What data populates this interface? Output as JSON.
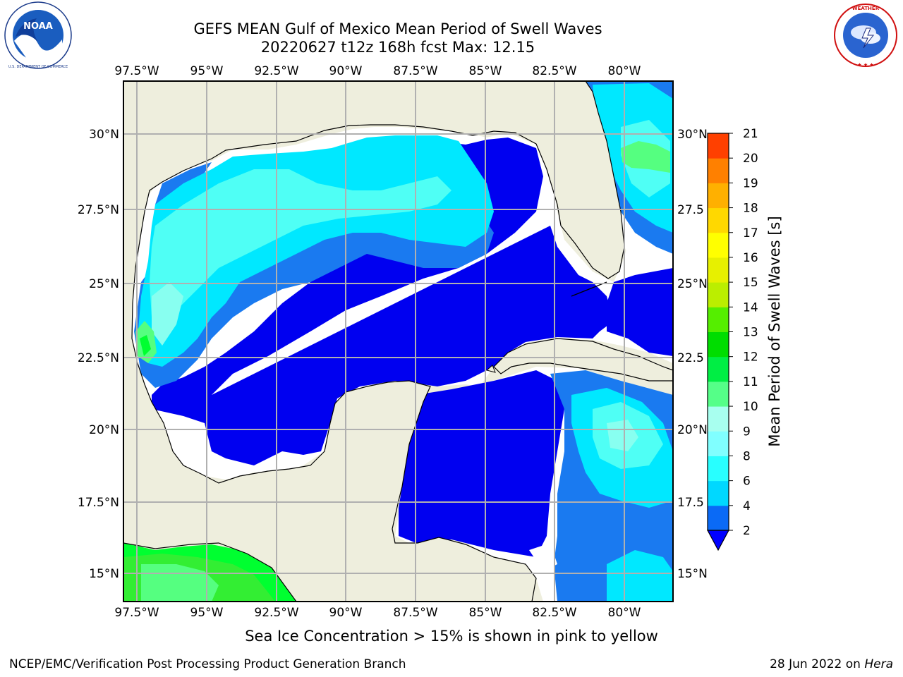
{
  "title": {
    "line1": "GEFS MEAN Gulf of Mexico Mean Period of Swell Waves",
    "line2": "20220627 t12z 168h fcst   Max: 12.15"
  },
  "caption": "Sea Ice Concentration > 15% is shown in pink to yellow",
  "footer": {
    "left": "NCEP/EMC/Verification Post Processing Product Generation Branch",
    "right_date": "28 Jun 2022 on ",
    "right_host": "Hera"
  },
  "logos": [
    {
      "name": "noaa",
      "text": "NOAA",
      "ring_text": "NATIONAL OCEANIC AND ATMOSPHERIC ADMINISTRATION · U.S. DEPARTMENT OF COMMERCE"
    },
    {
      "name": "nws",
      "ring_text": "NATIONAL WEATHER SERVICE"
    }
  ],
  "map": {
    "lon_labels": [
      "97.5°W",
      "95°W",
      "92.5°W",
      "90°W",
      "87.5°W",
      "85°W",
      "82.5°W",
      "80°W"
    ],
    "lat_labels_left": [
      "30°N",
      "27.5°N",
      "25°N",
      "22.5°N",
      "20°N",
      "17.5°N",
      "15°N"
    ],
    "lat_labels_right": [
      "30°N",
      "27.5",
      "25°N",
      "22.5",
      "20°N",
      "17.5",
      "15°N"
    ],
    "colors": {
      "land": "#eeeedd",
      "frame": "#000000",
      "grid": "#b0b0b0"
    }
  },
  "colorbar": {
    "label": "Mean Period of Swell Waves [s]",
    "ticks": [
      "2",
      "4",
      "6",
      "8",
      "9",
      "10",
      "11",
      "12",
      "13",
      "14",
      "15",
      "16",
      "17",
      "18",
      "19",
      "20",
      "21"
    ],
    "colors": [
      "#0a6af6",
      "#00d8ff",
      "#28ffff",
      "#80ffff",
      "#a8ffef",
      "#55ff88",
      "#00ee44",
      "#00dd00",
      "#55ee00",
      "#bbee00",
      "#e7f000",
      "#ffff00",
      "#ffd800",
      "#ffb000",
      "#ff8000",
      "#ff4000",
      "#ff0000"
    ],
    "under_color": "#0000ff"
  },
  "swell_colors": {
    "c2": "#0000f0",
    "c4": "#1a7af0",
    "c6": "#00e8ff",
    "c8": "#4ffff5",
    "c9": "#88fff0",
    "c10": "#55ff80",
    "c11": "#00ff30",
    "c12": "#33ee33"
  }
}
